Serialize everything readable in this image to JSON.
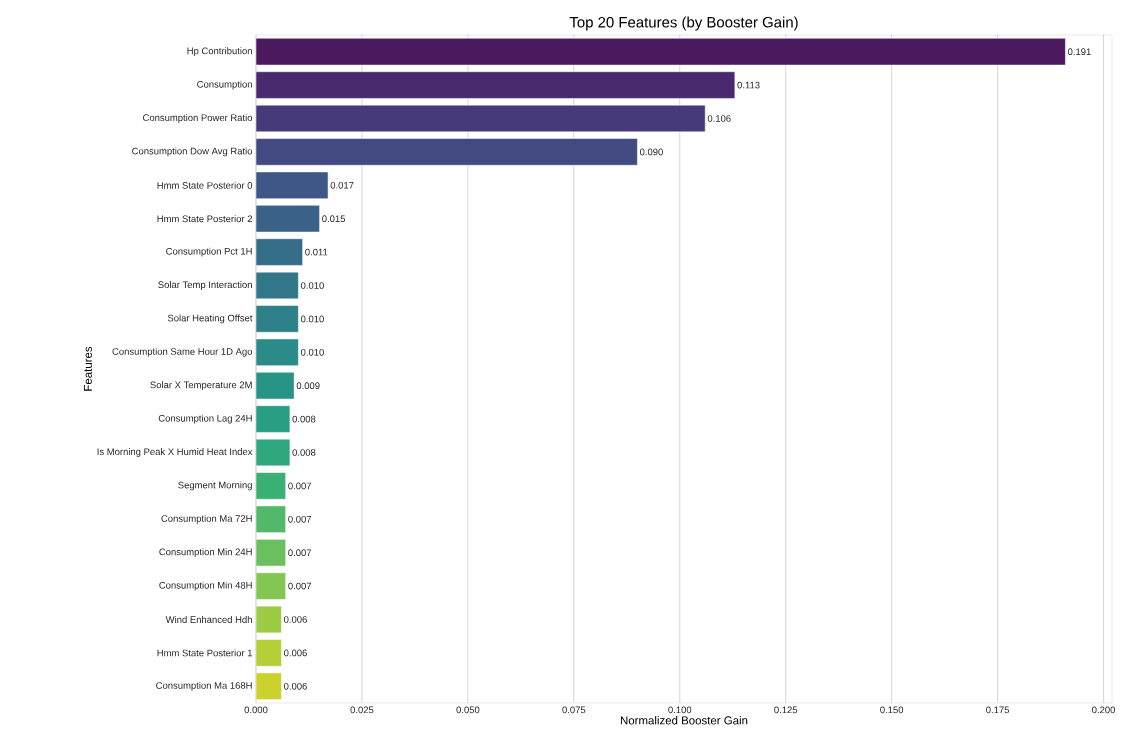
{
  "chart_data": {
    "type": "bar",
    "orientation": "horizontal",
    "title": "Top 20 Features (by Booster Gain)",
    "xlabel": "Normalized Booster Gain",
    "ylabel": "Features",
    "categories": [
      "Hp Contribution",
      "Consumption",
      "Consumption Power Ratio",
      "Consumption Dow Avg Ratio",
      "Hmm State Posterior 0",
      "Hmm State Posterior 2",
      "Consumption Pct 1H",
      "Solar Temp Interaction",
      "Solar Heating Offset",
      "Consumption Same Hour 1D Ago",
      "Solar X Temperature 2M",
      "Consumption Lag 24H",
      "Is Morning Peak X Humid Heat Index",
      "Segment Morning",
      "Consumption Ma 72H",
      "Consumption Min 24H",
      "Consumption Min 48H",
      "Wind Enhanced Hdh",
      "Hmm State Posterior 1",
      "Consumption Ma 168H"
    ],
    "values": [
      0.191,
      0.113,
      0.106,
      0.09,
      0.017,
      0.015,
      0.011,
      0.01,
      0.01,
      0.01,
      0.009,
      0.008,
      0.008,
      0.007,
      0.007,
      0.007,
      0.007,
      0.006,
      0.006,
      0.006
    ],
    "value_labels": [
      "0.191",
      "0.113",
      "0.106",
      "0.090",
      "0.017",
      "0.015",
      "0.011",
      "0.010",
      "0.010",
      "0.010",
      "0.009",
      "0.008",
      "0.008",
      "0.007",
      "0.007",
      "0.007",
      "0.007",
      "0.006",
      "0.006",
      "0.006"
    ],
    "colors": [
      "#4b1a5e",
      "#4a2a6e",
      "#473a7a",
      "#434a82",
      "#3e5787",
      "#3a6288",
      "#366d89",
      "#327789",
      "#2f8189",
      "#2b8b88",
      "#289486",
      "#299e82",
      "#2fa77c",
      "#3bb075",
      "#52b96b",
      "#6ac05f",
      "#84c653",
      "#9ecb45",
      "#b5cf38",
      "#cbd22d"
    ],
    "xlim": [
      0,
      0.202
    ],
    "xticks": [
      {
        "value": 0,
        "label": "0.000"
      },
      {
        "value": 0.025,
        "label": "0.025"
      },
      {
        "value": 0.05,
        "label": "0.050"
      },
      {
        "value": 0.075,
        "label": "0.075"
      },
      {
        "value": 0.1,
        "label": "0.100"
      },
      {
        "value": 0.125,
        "label": "0.125"
      },
      {
        "value": 0.15,
        "label": "0.150"
      },
      {
        "value": 0.175,
        "label": "0.175"
      },
      {
        "value": 0.2,
        "label": "0.200"
      }
    ],
    "grid": "x"
  }
}
